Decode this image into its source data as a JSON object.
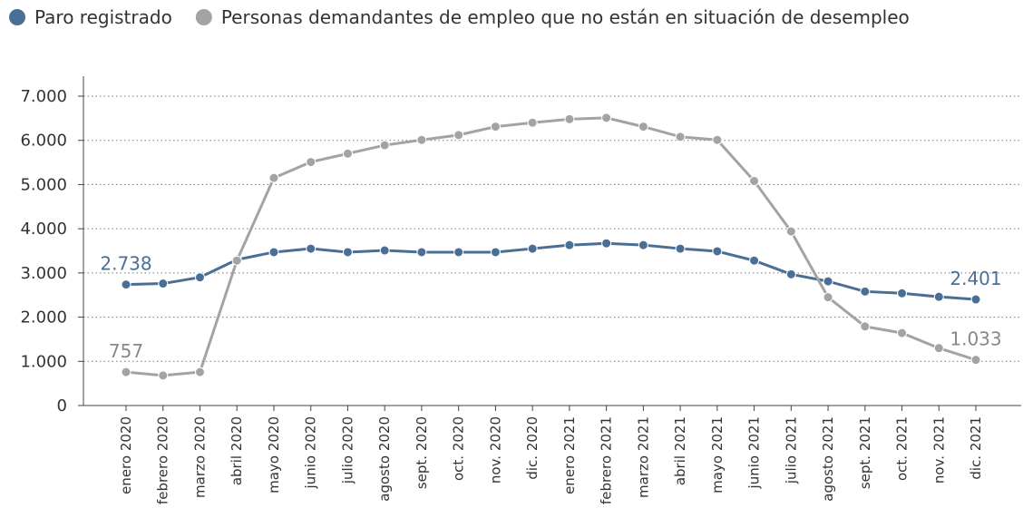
{
  "chart_data": {
    "type": "line",
    "categories": [
      "enero 2020",
      "febrero 2020",
      "marzo 2020",
      "abril 2020",
      "mayo 2020",
      "junio 2020",
      "julio 2020",
      "agosto 2020",
      "sept. 2020",
      "oct. 2020",
      "nov. 2020",
      "dic. 2020",
      "enero 2021",
      "febrero 2021",
      "marzo 2021",
      "abril 2021",
      "mayo 2021",
      "junio 2021",
      "julio 2021",
      "agosto 2021",
      "sept. 2021",
      "oct. 2021",
      "nov. 2021",
      "dic. 2021"
    ],
    "series": [
      {
        "name": "Paro registrado",
        "color": "#4a6f94",
        "values": [
          2738,
          2760,
          2900,
          3300,
          3470,
          3550,
          3470,
          3510,
          3470,
          3470,
          3470,
          3550,
          3630,
          3670,
          3630,
          3550,
          3490,
          3280,
          2970,
          2810,
          2580,
          2540,
          2460,
          2401
        ],
        "value_labels": [
          "2.738",
          null,
          null,
          null,
          null,
          null,
          null,
          null,
          null,
          null,
          null,
          null,
          null,
          null,
          null,
          null,
          null,
          null,
          null,
          null,
          null,
          null,
          null,
          "2.401"
        ]
      },
      {
        "name": "Personas demandantes de empleo que no están en situación de desempleo",
        "color": "#a3a3a3",
        "values": [
          757,
          680,
          757,
          3280,
          5150,
          5510,
          5700,
          5890,
          6010,
          6120,
          6310,
          6400,
          6480,
          6510,
          6310,
          6080,
          6010,
          5080,
          3940,
          2450,
          1790,
          1640,
          1300,
          1033
        ],
        "value_labels": [
          "757",
          null,
          null,
          null,
          null,
          null,
          null,
          null,
          null,
          null,
          null,
          null,
          null,
          null,
          null,
          null,
          null,
          null,
          null,
          null,
          null,
          null,
          null,
          "1.033"
        ]
      }
    ],
    "ylim": [
      0,
      7000
    ],
    "yticks": [
      0,
      {
        "value": 1000,
        "label": "1.000"
      },
      {
        "value": 2000,
        "label": "2.000"
      },
      {
        "value": 3000,
        "label": "3.000"
      },
      {
        "value": 4000,
        "label": "4.000"
      },
      {
        "value": 5000,
        "label": "5.000"
      },
      {
        "value": 6000,
        "label": "6.000"
      },
      {
        "value": 7000,
        "label": "7.000"
      }
    ],
    "grid": true
  }
}
